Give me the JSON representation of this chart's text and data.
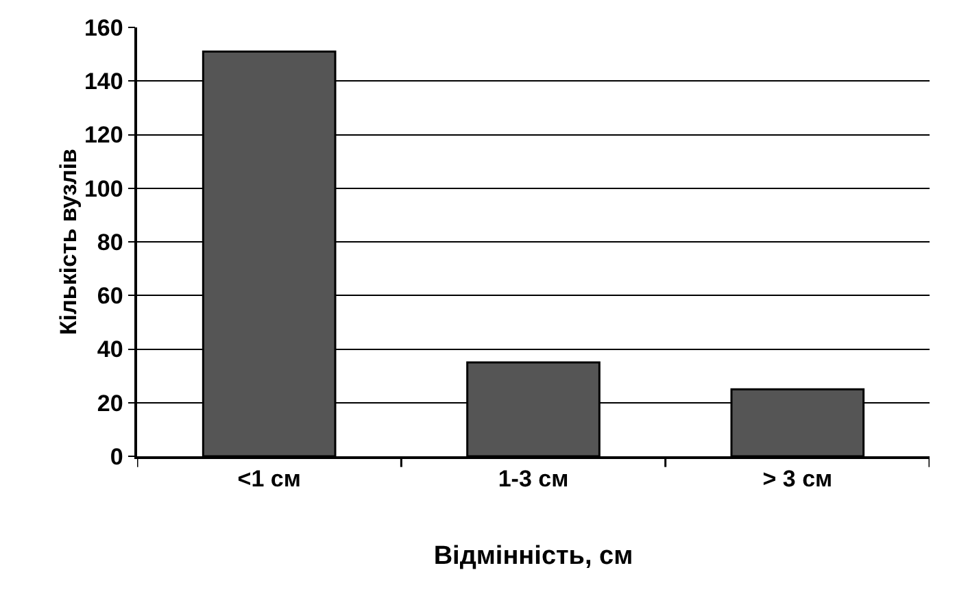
{
  "chart_data": {
    "type": "bar",
    "xlabel": "Відмінність, см",
    "ylabel": "Кількість вузлів",
    "categories": [
      "<1 см",
      "1-3 см",
      "> 3 см"
    ],
    "values": [
      151,
      35,
      25
    ],
    "color": "#555555",
    "ylim": [
      0,
      160
    ],
    "yticks": [
      0,
      20,
      40,
      60,
      80,
      100,
      120,
      140,
      160
    ],
    "grid": "y"
  }
}
